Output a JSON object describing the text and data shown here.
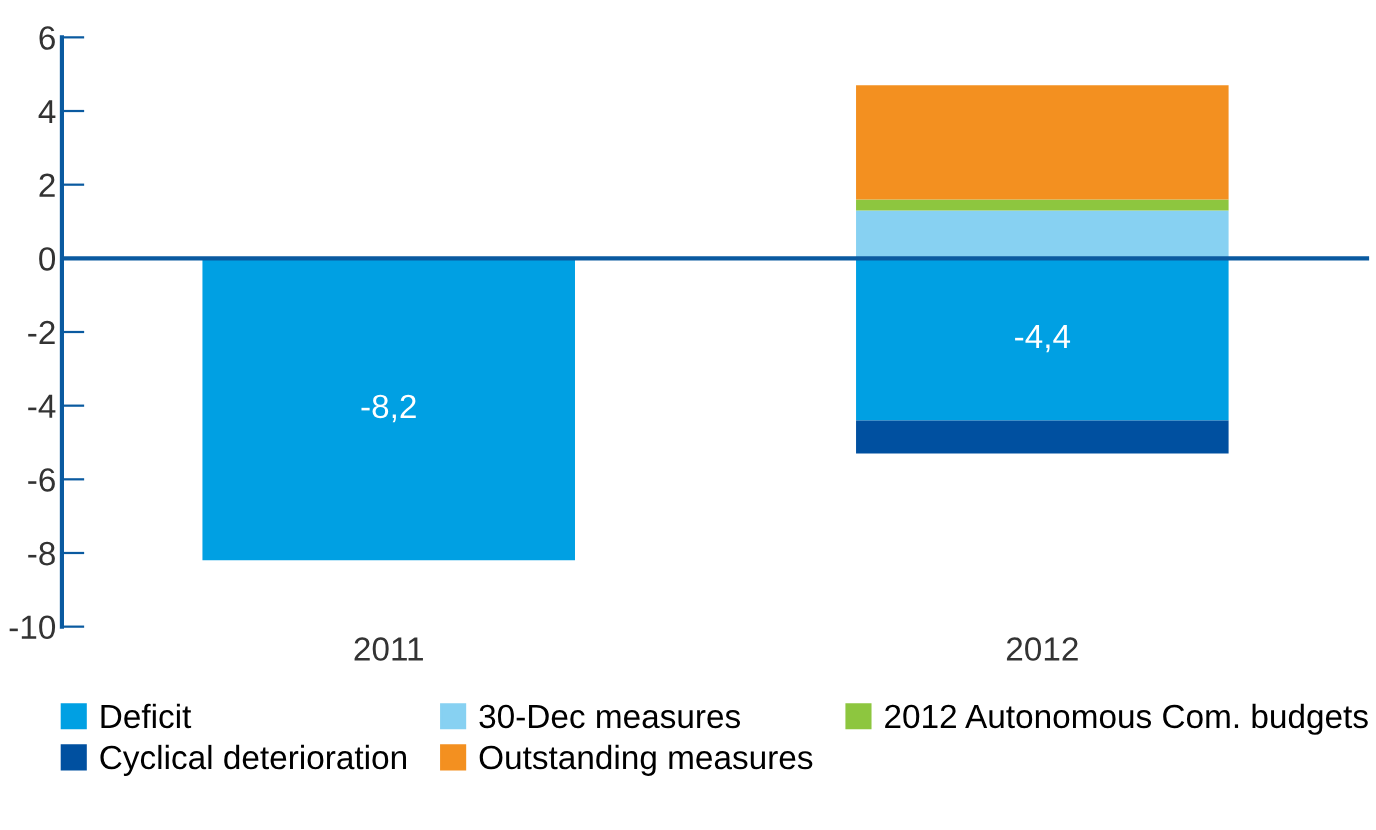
{
  "chart_data": {
    "type": "bar",
    "stacked": true,
    "categories": [
      "2011",
      "2012"
    ],
    "series": [
      {
        "name": "Deficit",
        "color": "#00a0e3",
        "values": [
          -8.2,
          -4.4
        ],
        "value_labels": [
          "-8,2",
          "-4,4"
        ]
      },
      {
        "name": "30-Dec measures",
        "color": "#87d1f2",
        "values": [
          null,
          1.3
        ]
      },
      {
        "name": "2012 Autonomous Com. budgets",
        "color": "#8dc63f",
        "values": [
          null,
          0.3
        ]
      },
      {
        "name": "Cyclical deterioration",
        "color": "#0050a0",
        "values": [
          null,
          -0.9
        ]
      },
      {
        "name": "Outstanding measures",
        "color": "#f39020",
        "values": [
          null,
          3.1
        ]
      }
    ],
    "ylim": [
      -10,
      6
    ],
    "yticks": [
      -10,
      -8,
      -6,
      -4,
      -2,
      0,
      2,
      4,
      6
    ],
    "ref_lines": [
      {
        "axis": "y",
        "value": 0,
        "color": "#0a5aa0"
      }
    ],
    "grid": false,
    "legend": "bottom"
  }
}
